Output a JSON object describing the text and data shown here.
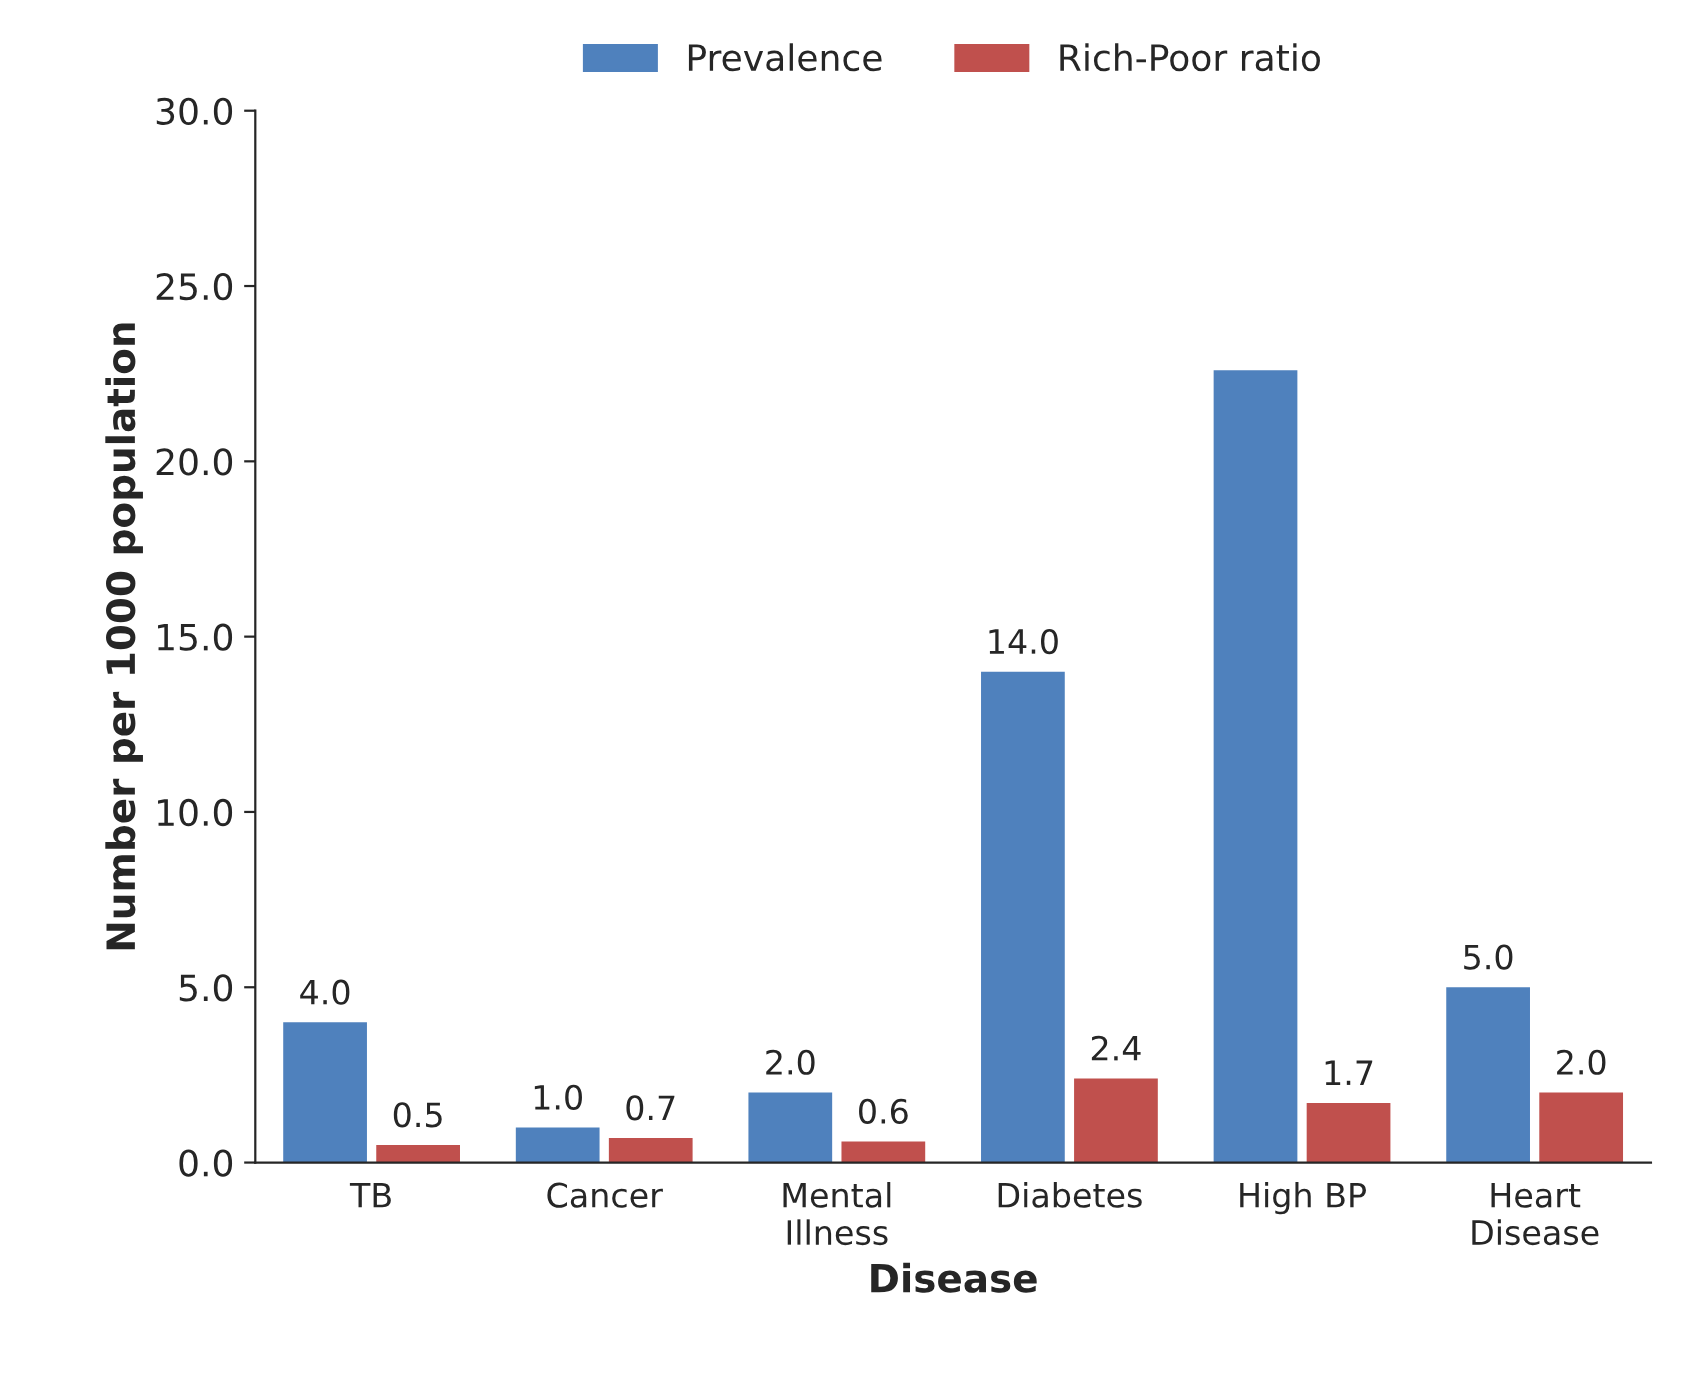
{
  "chart_data": {
    "type": "bar",
    "xlabel": "Disease",
    "ylabel": "Number per 1000 population",
    "categories": [
      "TB",
      "Cancer",
      "Mental\nIllness",
      "Diabetes",
      "High BP",
      "Heart\nDisease"
    ],
    "series": [
      {
        "name": "Prevalence",
        "color": "#4f81bd",
        "values": [
          4.0,
          1.0,
          2.0,
          14.0,
          22.6,
          5.0
        ],
        "value_labels": [
          "4.0",
          "1.0",
          "2.0",
          "14.0",
          null,
          "5.0"
        ]
      },
      {
        "name": "Rich-Poor ratio",
        "color": "#c0504d",
        "values": [
          0.5,
          0.7,
          0.6,
          2.4,
          1.7,
          2.0
        ],
        "value_labels": [
          "0.5",
          "0.7",
          "0.6",
          "2.4",
          "1.7",
          "2.0"
        ]
      }
    ],
    "ylim": [
      0,
      30
    ],
    "yticks": [
      {
        "value": 0,
        "label": "0.0"
      },
      {
        "value": 5,
        "label": "5.0"
      },
      {
        "value": 10,
        "label": "10.0"
      },
      {
        "value": 15,
        "label": "15.0"
      },
      {
        "value": 20,
        "label": "20.0"
      },
      {
        "value": 25,
        "label": "25.0"
      },
      {
        "value": 30,
        "label": "30.0"
      }
    ],
    "legend": "top",
    "grid": false
  }
}
